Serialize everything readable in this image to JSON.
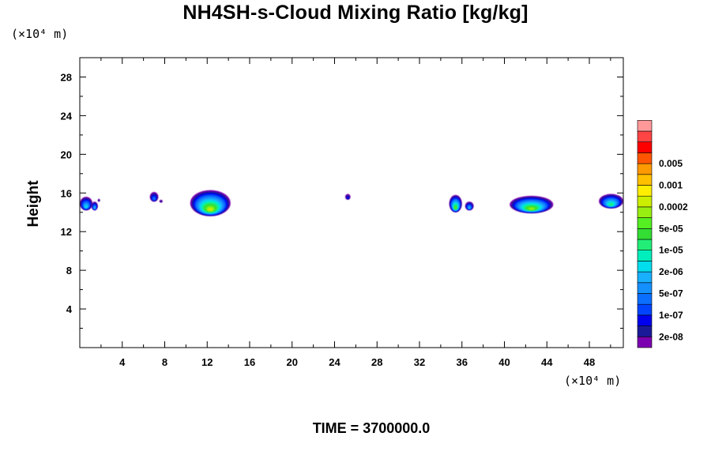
{
  "chart_data": {
    "type": "heatmap",
    "title": "NH4SH-s-Cloud Mixing Ratio [kg/kg]",
    "ylabel": "Height",
    "y_unit": "(×10⁴ m)",
    "x_unit": "(×10⁴ m)",
    "footer": "TIME = 3700000.0",
    "xlim": [
      0,
      51.2
    ],
    "ylim": [
      0,
      30
    ],
    "x_ticks": [
      4,
      8,
      12,
      16,
      20,
      24,
      28,
      32,
      36,
      40,
      44,
      48
    ],
    "x_tick_labels": [
      "4",
      "8",
      "12",
      "16",
      "20",
      "24",
      "28",
      "32",
      "36",
      "40",
      "44",
      "48"
    ],
    "y_ticks": [
      4,
      8,
      12,
      16,
      20,
      24,
      28
    ],
    "y_tick_labels": [
      "4",
      "8",
      "12",
      "16",
      "20",
      "24",
      "28"
    ],
    "colorbar": {
      "colors": [
        "#7b00b0",
        "#1a1a99",
        "#0000ee",
        "#0044ff",
        "#0a6fff",
        "#1590ff",
        "#18b0ff",
        "#00ddee",
        "#00eebb",
        "#22ee77",
        "#33dd33",
        "#55ee22",
        "#99ee11",
        "#ccee00",
        "#ffee00",
        "#ffc000",
        "#ff9900",
        "#ff5500",
        "#ff0000",
        "#ff4444",
        "#ff9999"
      ],
      "labels": [
        "2e-08",
        "1e-07",
        "5e-07",
        "2e-06",
        "1e-05",
        "5e-05",
        "0.0002",
        "0.001",
        "0.005"
      ],
      "label_positions": [
        1,
        3,
        5,
        7,
        9,
        11,
        13,
        15,
        17
      ]
    },
    "clouds": [
      {
        "x": [
          0,
          1.2
        ],
        "y": [
          14.2,
          15.6
        ],
        "max_level": 7
      },
      {
        "x": [
          1.1,
          1.7
        ],
        "y": [
          14.2,
          15.1
        ],
        "max_level": 6
      },
      {
        "x": [
          1.7,
          1.9
        ],
        "y": [
          15.1,
          15.4
        ],
        "max_level": 1
      },
      {
        "x": [
          6.6,
          7.4
        ],
        "y": [
          15.1,
          16.1
        ],
        "max_level": 4
      },
      {
        "x": [
          7.5,
          7.8
        ],
        "y": [
          15.0,
          15.3
        ],
        "max_level": 1
      },
      {
        "x": [
          10.4,
          14.2
        ],
        "y": [
          13.6,
          16.3
        ],
        "max_level": 13
      },
      {
        "x": [
          25.0,
          25.5
        ],
        "y": [
          15.3,
          15.9
        ],
        "max_level": 2
      },
      {
        "x": [
          34.8,
          36.0
        ],
        "y": [
          14.0,
          15.8
        ],
        "max_level": 11
      },
      {
        "x": [
          36.3,
          37.1
        ],
        "y": [
          14.2,
          15.1
        ],
        "max_level": 6
      },
      {
        "x": [
          40.5,
          44.6
        ],
        "y": [
          13.9,
          15.7
        ],
        "max_level": 12
      },
      {
        "x": [
          48.9,
          51.2
        ],
        "y": [
          14.4,
          15.9
        ],
        "max_level": 9
      }
    ]
  }
}
